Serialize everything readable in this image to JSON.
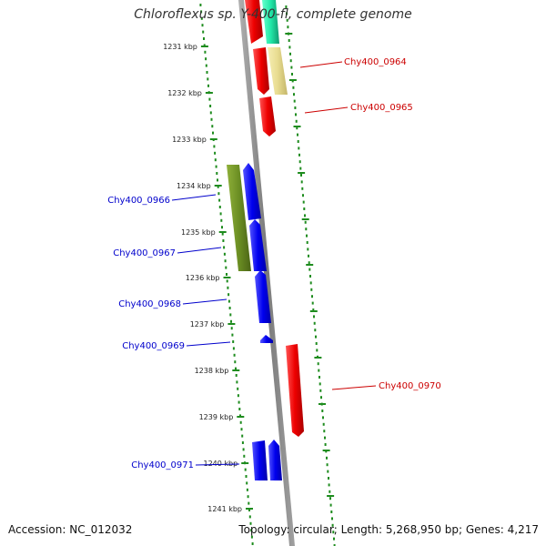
{
  "title": "Chloroflexus sp. Y-400-fl, complete genome",
  "accession": "Accession: NC_012032",
  "summary": "Topology: circular; Length: 5,268,950 bp; Genes: 4,217",
  "colors": {
    "backbone": "#8a8a8a",
    "gc_dots": "#1e8c1e",
    "forward_label": "#cc0000",
    "reverse_label": "#0000cc",
    "red": "#ee1111",
    "blue": "#1111ee",
    "teal": "#22e8a8",
    "khaki": "#e8dc90",
    "olive": "#6b8e23"
  },
  "ticks": [
    {
      "label": "1231 kbp",
      "y": 51
    },
    {
      "label": "1232 kbp",
      "y": 102
    },
    {
      "label": "1233 kbp",
      "y": 153
    },
    {
      "label": "1234 kbp",
      "y": 204
    },
    {
      "label": "1235 kbp",
      "y": 255
    },
    {
      "label": "1236 kbp",
      "y": 305
    },
    {
      "label": "1237 kbp",
      "y": 356
    },
    {
      "label": "1238 kbp",
      "y": 407
    },
    {
      "label": "1239 kbp",
      "y": 458
    },
    {
      "label": "1240 kbp",
      "y": 509
    },
    {
      "label": "1241 kbp",
      "y": 559
    }
  ],
  "gene_labels": {
    "forward": [
      {
        "name": "Chy400_0964"
      },
      {
        "name": "Chy400_0965"
      },
      {
        "name": "Chy400_0970"
      }
    ],
    "reverse": [
      {
        "name": "Chy400_0966"
      },
      {
        "name": "Chy400_0967"
      },
      {
        "name": "Chy400_0968"
      },
      {
        "name": "Chy400_0969"
      },
      {
        "name": "Chy400_0971"
      }
    ]
  }
}
